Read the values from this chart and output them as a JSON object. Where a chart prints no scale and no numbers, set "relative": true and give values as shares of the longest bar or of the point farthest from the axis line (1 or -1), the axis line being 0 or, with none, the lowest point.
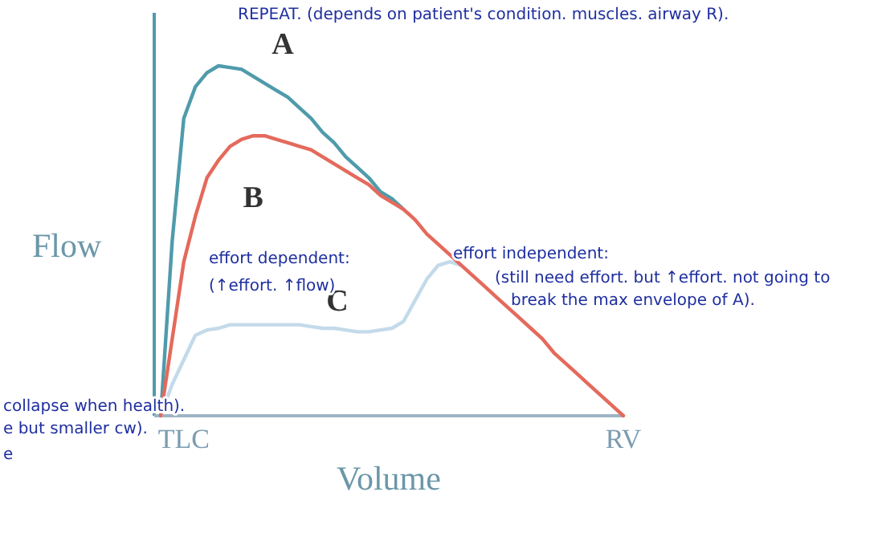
{
  "chart_data": {
    "type": "line",
    "relative": true,
    "xlabel": "Volume",
    "ylabel": "Flow",
    "categories": [
      null,
      null,
      "TLC",
      null,
      null,
      null,
      null,
      null,
      null,
      null,
      null,
      null,
      null,
      null,
      null,
      null,
      null,
      null,
      null,
      null,
      null,
      null,
      null,
      null,
      null,
      null,
      null,
      null,
      null,
      null,
      null,
      null,
      null,
      null,
      null,
      null,
      null,
      null,
      null,
      null,
      "RV"
    ],
    "series": [
      {
        "name": "A",
        "color": "#4f9bab",
        "values": [
          0,
          0.5,
          0.85,
          0.94,
          0.98,
          1,
          0.995,
          0.99,
          0.97,
          0.95,
          0.93,
          0.91,
          0.88,
          0.85,
          0.81,
          0.78,
          0.74,
          0.71,
          0.68,
          0.64,
          0.62,
          0.59,
          null,
          null,
          null,
          null,
          null,
          null,
          null,
          null,
          null,
          null,
          null,
          null,
          null,
          null,
          null,
          null,
          null,
          null,
          null
        ]
      },
      {
        "name": "B",
        "color": "#e46a5c",
        "values": [
          0,
          0.22,
          0.44,
          0.57,
          0.68,
          0.73,
          0.77,
          0.79,
          0.8,
          0.8,
          0.79,
          0.78,
          0.77,
          0.76,
          0.74,
          0.72,
          0.7,
          0.68,
          0.66,
          0.63,
          0.61,
          0.59,
          0.56,
          0.52,
          0.49,
          0.46,
          0.43,
          0.4,
          0.37,
          0.34,
          0.31,
          0.28,
          0.25,
          0.22,
          0.18,
          0.15,
          0.12,
          0.09,
          0.06,
          0.03,
          0
        ]
      },
      {
        "name": "C",
        "color": "#c3daea",
        "values": [
          0,
          0.09,
          0.16,
          0.23,
          0.245,
          0.25,
          0.26,
          0.26,
          0.26,
          0.26,
          0.26,
          0.26,
          0.26,
          0.255,
          0.25,
          0.25,
          0.245,
          0.24,
          0.24,
          0.245,
          0.25,
          0.27,
          0.33,
          0.39,
          0.43,
          0.44,
          0.43,
          null,
          null,
          null,
          null,
          null,
          null,
          null,
          null,
          null,
          null,
          null,
          null,
          null,
          null
        ]
      }
    ],
    "grid": false,
    "marker": "none",
    "line_style": "solid",
    "annotations": [
      "REPEAT. (depends on patient's condition. muscles. airway R).",
      "effort dependent:",
      "(↑effort. ↑flow)",
      "effort independent:",
      "(still need effort. but ↑effort. not going to",
      "break the max envelope of A).",
      "collapse when health).",
      "e but smaller cw).",
      "e"
    ]
  }
}
